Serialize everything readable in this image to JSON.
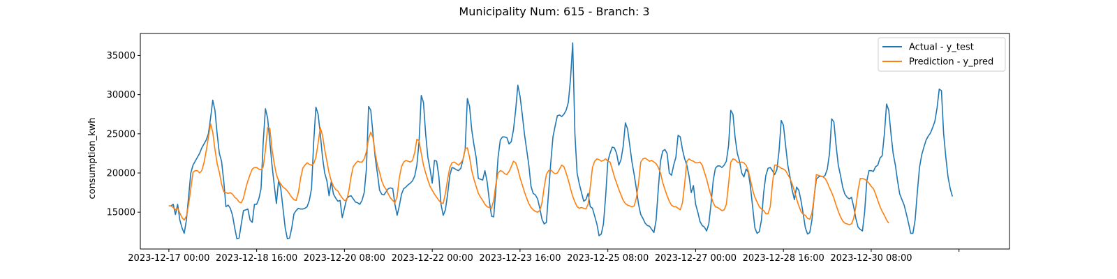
{
  "chart_data": {
    "type": "line",
    "title": "Municipality Num: 615 - Branch: 3",
    "xlabel": "",
    "ylabel": "consumption_kwh",
    "x_start": "2023-12-17 00:00",
    "x_step_hours": 1,
    "xlim_hours": [
      -13,
      383
    ],
    "ylim": [
      10300,
      37800
    ],
    "x_ticks": [
      {
        "hour": 0,
        "label": "2023-12-17 00:00"
      },
      {
        "hour": 40,
        "label": "2023-12-18 16:00"
      },
      {
        "hour": 80,
        "label": "2023-12-20 08:00"
      },
      {
        "hour": 120,
        "label": "2023-12-22 00:00"
      },
      {
        "hour": 160,
        "label": "2023-12-23 16:00"
      },
      {
        "hour": 200,
        "label": "2023-12-25 08:00"
      },
      {
        "hour": 240,
        "label": "2023-12-27 00:00"
      },
      {
        "hour": 280,
        "label": "2023-12-28 16:00"
      },
      {
        "hour": 320,
        "label": "2023-12-30 08:00"
      },
      {
        "hour": 360,
        "label": ""
      }
    ],
    "y_ticks": [
      15000,
      20000,
      25000,
      30000,
      35000
    ],
    "grid": false,
    "legend_position": "top-right",
    "series": [
      {
        "name": "Actual - y_test",
        "color": "#1f77b4",
        "values": [
          15800,
          15800,
          16000,
          14700,
          16000,
          14000,
          13000,
          12300,
          14000,
          17000,
          20000,
          21000,
          21500,
          22000,
          22500,
          23200,
          23700,
          24200,
          25000,
          27000,
          29300,
          28000,
          25000,
          22500,
          21500,
          19000,
          15700,
          15900,
          15500,
          14600,
          13000,
          11600,
          11700,
          13500,
          15200,
          15300,
          15400,
          14000,
          13700,
          16000,
          16000,
          16700,
          18000,
          24000,
          28200,
          27000,
          24000,
          21000,
          18500,
          16100,
          19100,
          18000,
          15500,
          13000,
          11600,
          11700,
          13000,
          14800,
          15200,
          15500,
          15400,
          15400,
          15500,
          15700,
          16500,
          18000,
          24000,
          28400,
          27500,
          25000,
          22000,
          20000,
          19000,
          17100,
          18900,
          17300,
          16800,
          16400,
          16500,
          14300,
          15500,
          16700,
          17000,
          17100,
          16700,
          16300,
          16200,
          16000,
          16500,
          17500,
          20500,
          28500,
          28000,
          25000,
          22000,
          20000,
          17800,
          17300,
          17200,
          17600,
          18000,
          18100,
          18000,
          16000,
          14600,
          15800,
          17300,
          18000,
          18200,
          18500,
          18700,
          19000,
          19600,
          21000,
          24000,
          29900,
          29000,
          25000,
          22000,
          20500,
          18700,
          21600,
          21500,
          19600,
          16000,
          14600,
          15300,
          17300,
          19700,
          20700,
          20600,
          20400,
          20300,
          20600,
          21700,
          23000,
          29500,
          28500,
          25500,
          23600,
          22000,
          19300,
          19200,
          19100,
          20300,
          18900,
          16500,
          14500,
          14400,
          18000,
          22000,
          24200,
          24600,
          24600,
          24500,
          23700,
          24000,
          25500,
          28000,
          31200,
          29800,
          27500,
          25000,
          23000,
          21000,
          18300,
          17400,
          17200,
          16700,
          15500,
          14100,
          13500,
          13700,
          17500,
          21300,
          24600,
          26000,
          27300,
          27400,
          27200,
          27500,
          28000,
          29000,
          32000,
          36600,
          25000,
          20000,
          18600,
          17500,
          16400,
          16600,
          17400,
          15700,
          15500,
          14500,
          13500,
          12000,
          12200,
          13500,
          17000,
          21500,
          22500,
          23300,
          23200,
          22500,
          21000,
          21700,
          23400,
          26400,
          25600,
          23500,
          21400,
          19800,
          18000,
          16000,
          14700,
          14200,
          13600,
          13300,
          13200,
          12800,
          12400,
          14000,
          18000,
          21500,
          22800,
          23000,
          22500,
          20000,
          19700,
          21000,
          22000,
          24800,
          24600,
          23000,
          21800,
          21000,
          19600,
          17500,
          18400,
          16000,
          15000,
          13800,
          13300,
          13100,
          12600,
          13500,
          16000,
          19000,
          20600,
          20900,
          20900,
          20700,
          21000,
          21500,
          23500,
          28000,
          27500,
          24500,
          22500,
          21500,
          20000,
          19500,
          20500,
          20100,
          18200,
          15600,
          13000,
          12300,
          12500,
          14000,
          17500,
          19700,
          20600,
          20700,
          20300,
          19800,
          20400,
          22800,
          26700,
          26100,
          23500,
          21000,
          19500,
          17800,
          16600,
          18200,
          17800,
          16500,
          14800,
          13000,
          12200,
          12400,
          14000,
          17000,
          19200,
          19500,
          19600,
          19500,
          19700,
          20500,
          22500,
          26900,
          26500,
          23500,
          21000,
          19700,
          18200,
          17300,
          16900,
          16700,
          16900,
          15700,
          14200,
          13100,
          12800,
          12600,
          15000,
          19000,
          20300,
          20300,
          20200,
          20800,
          21000,
          21900,
          22200,
          25000,
          28800,
          28000,
          25000,
          22500,
          21000,
          19000,
          17300,
          16600,
          15900,
          14800,
          13600,
          12300,
          12300,
          14000,
          17500,
          20700,
          22300,
          23300,
          24200,
          24700,
          25100,
          25800,
          26600,
          28300,
          30700,
          30500,
          25000,
          22000,
          19500,
          18000,
          17000
        ]
      },
      {
        "name": "Prediction - y_pred",
        "color": "#ff7f0e",
        "values": [
          15800,
          15800,
          15600,
          15300,
          15500,
          14900,
          14300,
          14000,
          14500,
          16000,
          18000,
          20100,
          20300,
          20300,
          20000,
          20300,
          21300,
          22800,
          24500,
          26300,
          25200,
          23000,
          21200,
          20100,
          18600,
          17600,
          17500,
          17400,
          17500,
          17300,
          16900,
          16700,
          16300,
          16200,
          16800,
          18000,
          19000,
          19800,
          20500,
          20700,
          20700,
          20500,
          20400,
          20800,
          22900,
          25800,
          25700,
          23000,
          21200,
          19800,
          19000,
          18600,
          18200,
          18000,
          17700,
          17300,
          16900,
          16600,
          16500,
          17500,
          19300,
          20600,
          21000,
          21300,
          21100,
          21000,
          21200,
          22000,
          23800,
          25800,
          24800,
          23000,
          21500,
          20000,
          19000,
          18300,
          17900,
          17700,
          17200,
          16800,
          16500,
          16500,
          17700,
          19500,
          20800,
          21200,
          21500,
          21400,
          21400,
          21800,
          22700,
          24400,
          25200,
          24500,
          22500,
          21000,
          20100,
          19000,
          18300,
          17900,
          17300,
          16800,
          16500,
          16200,
          17000,
          19400,
          20800,
          21400,
          21600,
          21500,
          21400,
          21600,
          22600,
          24300,
          24100,
          22500,
          21000,
          20000,
          19100,
          18300,
          17800,
          17300,
          16900,
          16500,
          16200,
          16100,
          17400,
          19200,
          20700,
          21300,
          21400,
          21200,
          21000,
          21300,
          21700,
          23100,
          23200,
          22000,
          20300,
          19200,
          18300,
          17400,
          16900,
          16500,
          16000,
          15700,
          15600,
          15500,
          16500,
          18600,
          20000,
          20300,
          20200,
          19900,
          19800,
          20200,
          20800,
          21500,
          21300,
          20500,
          19400,
          18500,
          17600,
          16800,
          16100,
          15600,
          15300,
          15100,
          15000,
          15200,
          16200,
          18200,
          19800,
          20300,
          20400,
          20100,
          19900,
          20000,
          20500,
          21000,
          20800,
          20000,
          19100,
          18000,
          17000,
          16300,
          15700,
          15500,
          15600,
          15500,
          15400,
          16000,
          18200,
          20700,
          21500,
          21800,
          21700,
          21500,
          21600,
          21800,
          21500,
          21400,
          20500,
          19500,
          18700,
          17900,
          17200,
          16500,
          16100,
          15900,
          15800,
          15700,
          15800,
          16800,
          18700,
          21400,
          21800,
          21900,
          21700,
          21500,
          21600,
          21400,
          21200,
          20700,
          20000,
          18800,
          17900,
          17100,
          16400,
          15900,
          15700,
          15700,
          15500,
          15300,
          16200,
          18600,
          21500,
          21800,
          21600,
          21500,
          21300,
          21300,
          21400,
          21000,
          20100,
          19200,
          18100,
          17100,
          16200,
          15700,
          15600,
          15400,
          15200,
          15300,
          16000,
          18600,
          21400,
          21800,
          21700,
          21400,
          21300,
          21400,
          21300,
          21000,
          20300,
          19100,
          17800,
          16900,
          16300,
          15700,
          15400,
          15200,
          14800,
          14800,
          15700,
          18600,
          21000,
          21000,
          20800,
          20600,
          20500,
          20300,
          19800,
          19300,
          18600,
          17700,
          16700,
          15800,
          15100,
          14700,
          14600,
          14200,
          14100,
          14900,
          16900,
          19800,
          19700,
          19600,
          19500,
          19300,
          18800,
          18100,
          17500,
          16800,
          15900,
          15100,
          14400,
          13900,
          13600,
          13500,
          13400,
          13500,
          14200,
          15700,
          17800,
          19300,
          19300,
          19200,
          19000,
          18700,
          18300,
          18000,
          17300,
          16500,
          15700,
          15100,
          14600,
          14000,
          13600
        ]
      }
    ]
  }
}
